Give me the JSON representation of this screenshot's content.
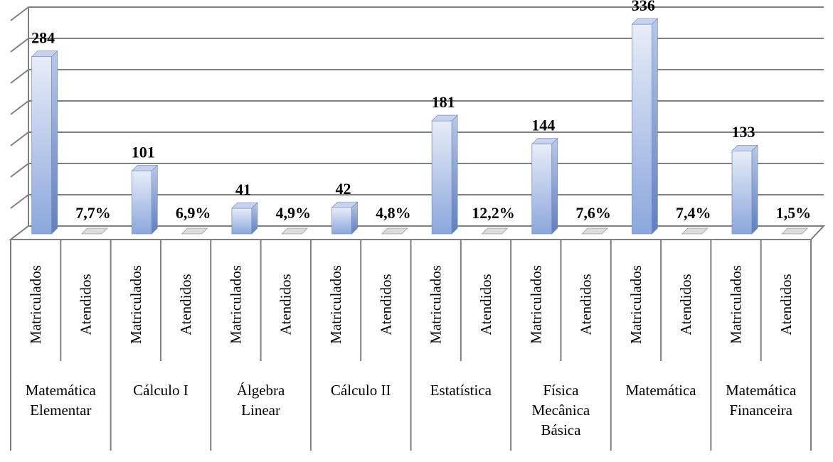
{
  "chart_data": {
    "type": "bar",
    "style": "3d-column",
    "groups": [
      {
        "name": "Matemática Elementar",
        "lines": [
          "Matemática",
          "Elementar"
        ],
        "bars": [
          {
            "category": "Matriculados",
            "value": 284,
            "label": "284"
          },
          {
            "category": "Atendidos",
            "value": 0,
            "label": "7,7%"
          }
        ]
      },
      {
        "name": "Cálculo I",
        "lines": [
          "Cálculo I"
        ],
        "bars": [
          {
            "category": "Matriculados",
            "value": 101,
            "label": "101"
          },
          {
            "category": "Atendidos",
            "value": 0,
            "label": "6,9%"
          }
        ]
      },
      {
        "name": "Álgebra Linear",
        "lines": [
          "Álgebra",
          "Linear"
        ],
        "bars": [
          {
            "category": "Matriculados",
            "value": 41,
            "label": "41"
          },
          {
            "category": "Atendidos",
            "value": 0,
            "label": "4,9%"
          }
        ]
      },
      {
        "name": "Cálculo II",
        "lines": [
          "Cálculo II"
        ],
        "bars": [
          {
            "category": "Matriculados",
            "value": 42,
            "label": "42"
          },
          {
            "category": "Atendidos",
            "value": 0,
            "label": "4,8%"
          }
        ]
      },
      {
        "name": "Estatística",
        "lines": [
          "Estatística"
        ],
        "bars": [
          {
            "category": "Matriculados",
            "value": 181,
            "label": "181"
          },
          {
            "category": "Atendidos",
            "value": 0,
            "label": "12,2%"
          }
        ]
      },
      {
        "name": "Física Mecânica Básica",
        "lines": [
          "Física",
          "Mecânica",
          "Básica"
        ],
        "bars": [
          {
            "category": "Matriculados",
            "value": 144,
            "label": "144"
          },
          {
            "category": "Atendidos",
            "value": 0,
            "label": "7,6%"
          }
        ]
      },
      {
        "name": "Matemática",
        "lines": [
          "Matemática"
        ],
        "bars": [
          {
            "category": "Matriculados",
            "value": 336,
            "label": "336"
          },
          {
            "category": "Atendidos",
            "value": 0,
            "label": "7,4%"
          }
        ]
      },
      {
        "name": "Matemática Financeira",
        "lines": [
          "Matemática",
          "Financeira"
        ],
        "bars": [
          {
            "category": "Matriculados",
            "value": 133,
            "label": "133"
          },
          {
            "category": "Atendidos",
            "value": 0,
            "label": "1,5%"
          }
        ]
      }
    ],
    "ylim": [
      0,
      350
    ],
    "grid": true,
    "legend": "none",
    "colors": {
      "bar_top": "#e8edf8",
      "bar_bottom": "#8ba7dc",
      "grid": "#7f7f7f"
    }
  }
}
